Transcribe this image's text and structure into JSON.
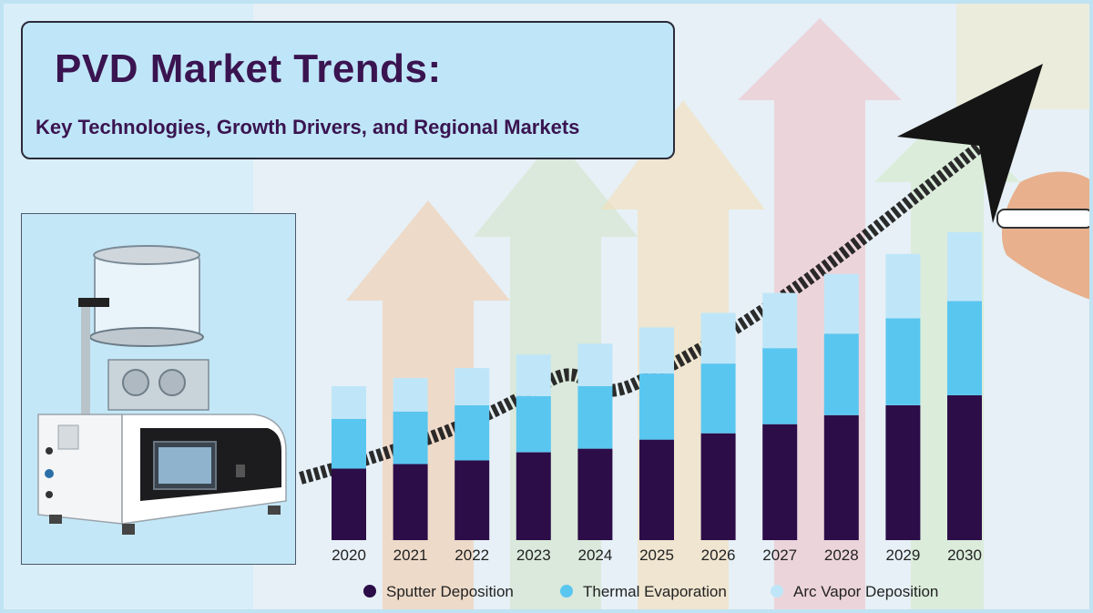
{
  "header": {
    "title": "PVD Market Trends:",
    "subtitle": "Key Technologies, Growth Drivers, and Regional Markets"
  },
  "colors": {
    "sputter": "#2c0d48",
    "thermal": "#59c6f0",
    "arc": "#bfe6f8",
    "title_text": "#3a1450",
    "background": "#d6ecf6"
  },
  "photo": {
    "icon": "pvd-coating-machine-icon"
  },
  "chart_data": {
    "type": "bar",
    "stacked": true,
    "categories": [
      "2020",
      "2021",
      "2022",
      "2023",
      "2024",
      "2025",
      "2026",
      "2027",
      "2028",
      "2029",
      "2030"
    ],
    "series": [
      {
        "name": "Sputter Deposition",
        "color": "#2c0d48",
        "values": [
          79,
          84,
          88,
          97,
          101,
          111,
          118,
          128,
          138,
          149,
          160
        ]
      },
      {
        "name": "Thermal Evaporation",
        "color": "#59c6f0",
        "values": [
          55,
          58,
          61,
          62,
          69,
          73,
          77,
          84,
          90,
          96,
          104
        ]
      },
      {
        "name": "Arc Vapor Deposition",
        "color": "#bfe6f8",
        "values": [
          36,
          37,
          41,
          46,
          47,
          51,
          56,
          61,
          66,
          71,
          76
        ]
      }
    ],
    "ylim": [
      0,
      345
    ],
    "legend": "bottom"
  }
}
